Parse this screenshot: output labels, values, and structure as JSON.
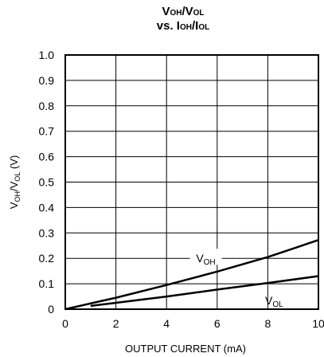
{
  "chart_data": {
    "type": "line",
    "title": "VOH/VOL vs. IOH/IOL",
    "title_parts": {
      "line1": {
        "a": "V",
        "a_sub": "OH",
        "b": "/V",
        "b_sub": "OL"
      },
      "line2": {
        "a": "vs. I",
        "a_sub": "OH",
        "b": "/I",
        "b_sub": "OL"
      }
    },
    "xlabel": "OUTPUT CURRENT (mA)",
    "ylabel": "VOH/VOL (V)",
    "ylabel_parts": {
      "a": "V",
      "a_sub": "OH",
      "b": "/V",
      "b_sub": "OL",
      "c": " (V)"
    },
    "xlim": [
      0,
      10
    ],
    "ylim": [
      0,
      1.0
    ],
    "xticks": [
      0,
      2,
      4,
      6,
      8,
      10
    ],
    "xtick_labels": [
      "0",
      "2",
      "4",
      "6",
      "8",
      "10"
    ],
    "yticks": [
      0,
      0.1,
      0.2,
      0.3,
      0.4,
      0.5,
      0.6,
      0.7,
      0.8,
      0.9,
      1.0
    ],
    "ytick_labels": [
      "0",
      "0.1",
      "0.2",
      "0.3",
      "0.4",
      "0.5",
      "0.6",
      "0.7",
      "0.8",
      "0.9",
      "1.0"
    ],
    "grid": true,
    "series": [
      {
        "name": "VOH",
        "label_main": "V",
        "label_sub": "OH",
        "label_at": {
          "x": 5.55,
          "y": 0.2
        },
        "color": "#000000",
        "x": [
          0,
          2,
          4,
          6,
          8,
          10
        ],
        "y": [
          0,
          0.045,
          0.095,
          0.148,
          0.205,
          0.272
        ]
      },
      {
        "name": "VOL",
        "label_main": "V",
        "label_sub": "OL",
        "label_at": {
          "x": 8.25,
          "y": 0.035
        },
        "color": "#000000",
        "x": [
          1,
          2,
          4,
          6,
          8,
          10
        ],
        "y": [
          0.013,
          0.025,
          0.05,
          0.077,
          0.103,
          0.13
        ]
      }
    ]
  }
}
